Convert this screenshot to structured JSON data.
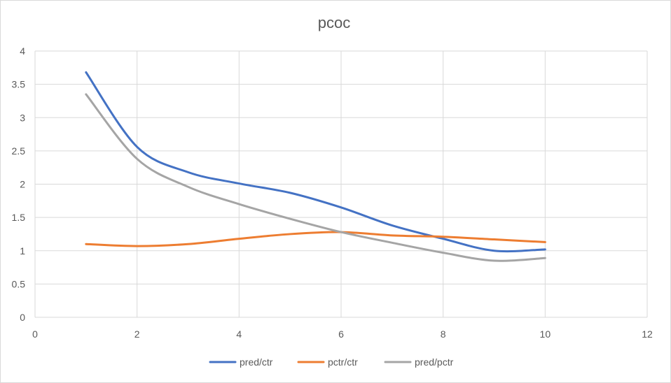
{
  "chart_data": {
    "type": "line",
    "title": "pcoc",
    "xlabel": "",
    "ylabel": "",
    "xlim": [
      0,
      12
    ],
    "ylim": [
      0,
      4
    ],
    "x_ticks": [
      "0",
      "2",
      "4",
      "6",
      "8",
      "10",
      "12"
    ],
    "y_ticks": [
      "0",
      "0.5",
      "1",
      "1.5",
      "2",
      "2.5",
      "3",
      "3.5",
      "4"
    ],
    "grid": true,
    "legend_position": "bottom",
    "x": [
      1,
      2,
      3,
      4,
      5,
      6,
      7,
      8,
      9,
      10
    ],
    "series": [
      {
        "name": "pred/ctr",
        "color": "#4472C4",
        "values": [
          3.68,
          2.56,
          2.18,
          2.01,
          1.87,
          1.65,
          1.38,
          1.18,
          1.0,
          1.02
        ]
      },
      {
        "name": "pctr/ctr",
        "color": "#ED7D31",
        "values": [
          1.1,
          1.07,
          1.1,
          1.18,
          1.25,
          1.28,
          1.23,
          1.21,
          1.17,
          1.13
        ]
      },
      {
        "name": "pred/pctr",
        "color": "#A5A5A5",
        "values": [
          3.35,
          2.38,
          1.96,
          1.7,
          1.48,
          1.28,
          1.12,
          0.97,
          0.85,
          0.89
        ]
      }
    ]
  }
}
